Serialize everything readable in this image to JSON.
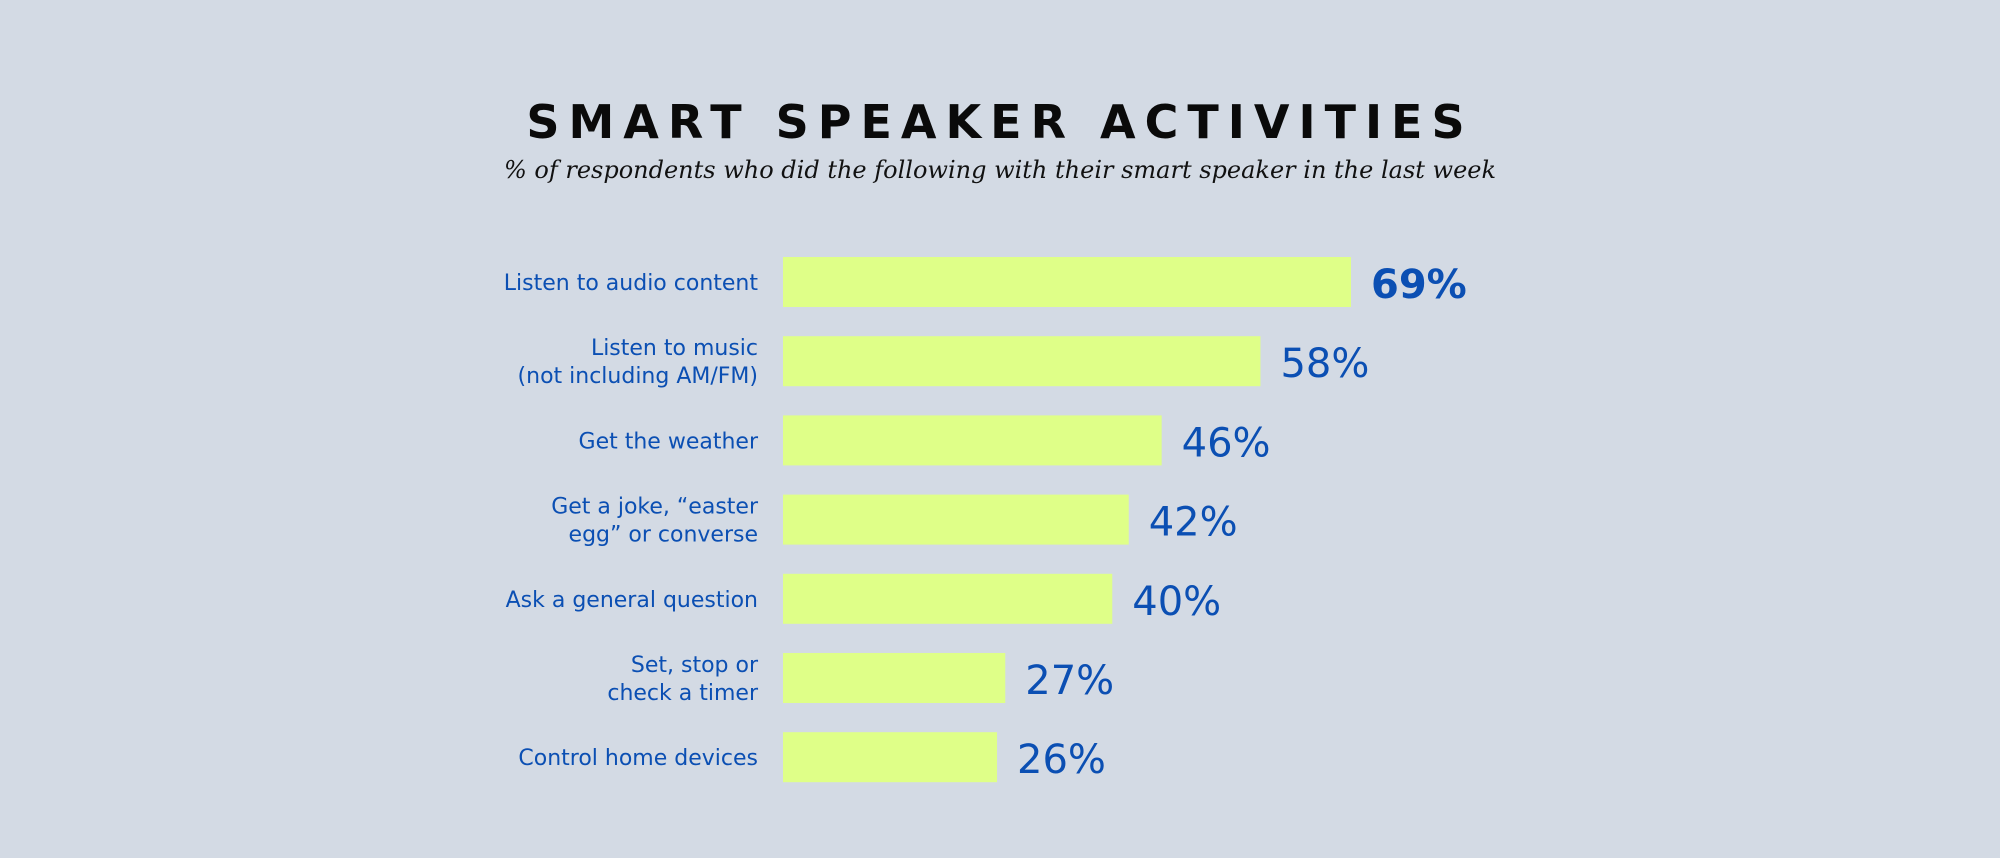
{
  "chart_data": {
    "type": "bar",
    "orientation": "horizontal",
    "title": "SMART SPEAKER ACTIVITIES",
    "subtitle": "% of respondents who did the following with their smart speaker in the last week",
    "categories": [
      [
        "Listen to audio content"
      ],
      [
        "Listen to music",
        "(not including AM/FM)"
      ],
      [
        "Get the weather"
      ],
      [
        "Get a joke, “easter",
        "egg” or converse"
      ],
      [
        "Ask a general question"
      ],
      [
        "Set, stop or",
        "check a timer"
      ],
      [
        "Control home devices"
      ]
    ],
    "values": [
      69,
      58,
      46,
      42,
      40,
      27,
      26
    ],
    "value_labels": [
      "69%",
      "58%",
      "46%",
      "42%",
      "40%",
      "27%",
      "26%"
    ],
    "xlim": [
      0,
      100
    ],
    "grid": false,
    "legend": "none"
  },
  "colors": {
    "background": "#d3dae4",
    "bar": "#dfff88",
    "label": "#0b4fb3",
    "title": "#0a0a0a"
  }
}
